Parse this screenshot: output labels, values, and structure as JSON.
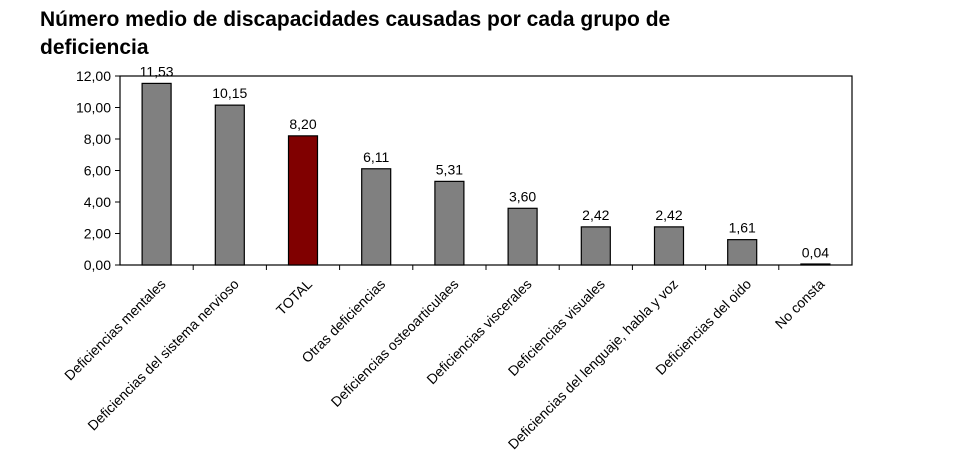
{
  "chart_data": {
    "type": "bar",
    "title": "Número medio de discapacidades causadas por cada grupo de deficiencia",
    "xlabel": "",
    "ylabel": "",
    "ylim": [
      0,
      12
    ],
    "yticks": [
      "0,00",
      "2,00",
      "4,00",
      "6,00",
      "8,00",
      "10,00",
      "12,00"
    ],
    "ytick_values": [
      0,
      2,
      4,
      6,
      8,
      10,
      12
    ],
    "grid": false,
    "categories": [
      "Deficiencias mentales",
      "Deficiencias del sistema nervioso",
      "TOTAL",
      "Otras deficiencias",
      "Deficiencias osteoarticulaes",
      "Deficiencias viscerales",
      "Deficiencias visuales",
      "Deficiencias del lenguaje, habla y voz",
      "Deficiencias del oido",
      "No consta"
    ],
    "values": [
      11.53,
      10.15,
      8.2,
      6.11,
      5.31,
      3.6,
      2.42,
      2.42,
      1.61,
      0.04
    ],
    "labels": [
      "11,53",
      "10,15",
      "8,20",
      "6,11",
      "5,31",
      "3,60",
      "2,42",
      "2,42",
      "1,61",
      "0,04"
    ],
    "colors": [
      "#808080",
      "#808080",
      "#800000",
      "#808080",
      "#808080",
      "#808080",
      "#808080",
      "#808080",
      "#808080",
      "#808080"
    ]
  }
}
